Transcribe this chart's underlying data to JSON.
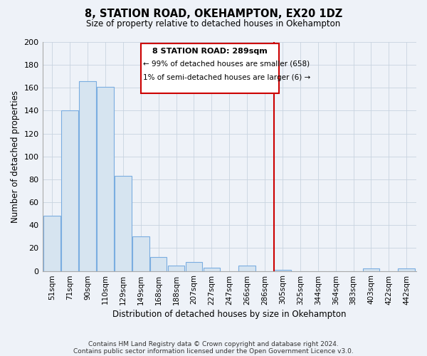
{
  "title": "8, STATION ROAD, OKEHAMPTON, EX20 1DZ",
  "subtitle": "Size of property relative to detached houses in Okehampton",
  "xlabel": "Distribution of detached houses by size in Okehampton",
  "ylabel": "Number of detached properties",
  "bin_labels": [
    "51sqm",
    "71sqm",
    "90sqm",
    "110sqm",
    "129sqm",
    "149sqm",
    "168sqm",
    "188sqm",
    "207sqm",
    "227sqm",
    "247sqm",
    "266sqm",
    "286sqm",
    "305sqm",
    "325sqm",
    "344sqm",
    "364sqm",
    "383sqm",
    "403sqm",
    "422sqm",
    "442sqm"
  ],
  "bar_heights": [
    48,
    140,
    166,
    161,
    83,
    30,
    12,
    5,
    8,
    3,
    0,
    5,
    0,
    1,
    0,
    0,
    0,
    0,
    2,
    0,
    2
  ],
  "bar_color": "#d6e4f0",
  "bar_edge_color": "#7aade0",
  "grid_color": "#c8d4e0",
  "vline_color": "#cc0000",
  "ylim": [
    0,
    200
  ],
  "yticks": [
    0,
    20,
    40,
    60,
    80,
    100,
    120,
    140,
    160,
    180,
    200
  ],
  "annotation_title": "8 STATION ROAD: 289sqm",
  "annotation_line1": "← 99% of detached houses are smaller (658)",
  "annotation_line2": "1% of semi-detached houses are larger (6) →",
  "footnote1": "Contains HM Land Registry data © Crown copyright and database right 2024.",
  "footnote2": "Contains public sector information licensed under the Open Government Licence v3.0.",
  "background_color": "#eef2f8",
  "plot_bg_color": "#eef2f8"
}
